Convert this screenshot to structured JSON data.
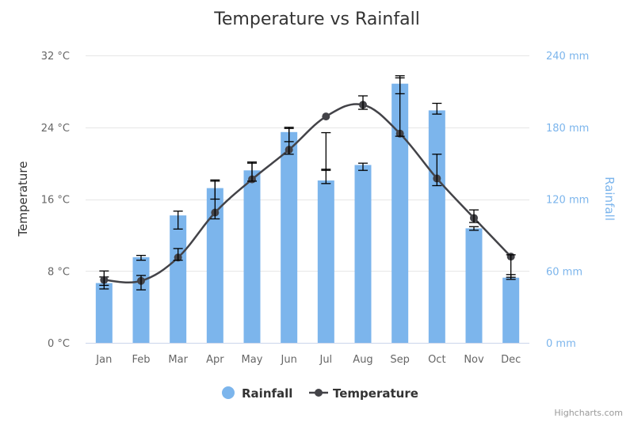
{
  "chart_data": {
    "type": "bar",
    "title": "Temperature vs Rainfall",
    "categories": [
      "Jan",
      "Feb",
      "Mar",
      "Apr",
      "May",
      "Jun",
      "Jul",
      "Aug",
      "Sep",
      "Oct",
      "Nov",
      "Dec"
    ],
    "series": [
      {
        "name": "Rainfall",
        "type": "bar",
        "axis": "right",
        "color": "#7cb5ec",
        "values": [
          49.9,
          71.5,
          106.4,
          129.2,
          144.0,
          176.0,
          135.6,
          148.5,
          216.4,
          194.1,
          95.6,
          54.4
        ],
        "error_low": [
          48,
          69,
          95,
          120,
          135,
          168,
          133,
          144,
          208,
          191,
          94,
          53
        ],
        "error_high": [
          55,
          73,
          110,
          136,
          151,
          179,
          145,
          150,
          223,
          200,
          97,
          57
        ]
      },
      {
        "name": "Temperature",
        "type": "line",
        "axis": "left",
        "color": "#434348",
        "values": [
          7.0,
          6.9,
          9.5,
          14.5,
          18.2,
          21.5,
          25.2,
          26.5,
          23.3,
          18.3,
          13.9,
          9.6
        ],
        "error_low": [
          6.0,
          5.9,
          9.2,
          13.8,
          18.0,
          21.0,
          23.4,
          26.0,
          23.0,
          17.5,
          13.4,
          7.3
        ],
        "error_high": [
          8.0,
          7.5,
          10.5,
          18.0,
          20.0,
          24.0,
          19.2,
          27.5,
          29.5,
          21.0,
          14.8,
          9.8
        ]
      }
    ],
    "y_left": {
      "title": "Temperature",
      "min": 0,
      "max": 32,
      "ticks": [
        0,
        8,
        16,
        24,
        32
      ],
      "tick_labels": [
        "0 °C",
        "8 °C",
        "16 °C",
        "24 °C",
        "32 °C"
      ]
    },
    "y_right": {
      "title": "Rainfall",
      "min": 0,
      "max": 240,
      "ticks": [
        0,
        60,
        120,
        180,
        240
      ],
      "tick_labels": [
        "0 mm",
        "60 mm",
        "120 mm",
        "180 mm",
        "240 mm"
      ]
    },
    "grid": true,
    "legend": {
      "position": "bottom-center",
      "items": [
        "Rainfall",
        "Temperature"
      ]
    },
    "credits": "Highcharts.com"
  }
}
